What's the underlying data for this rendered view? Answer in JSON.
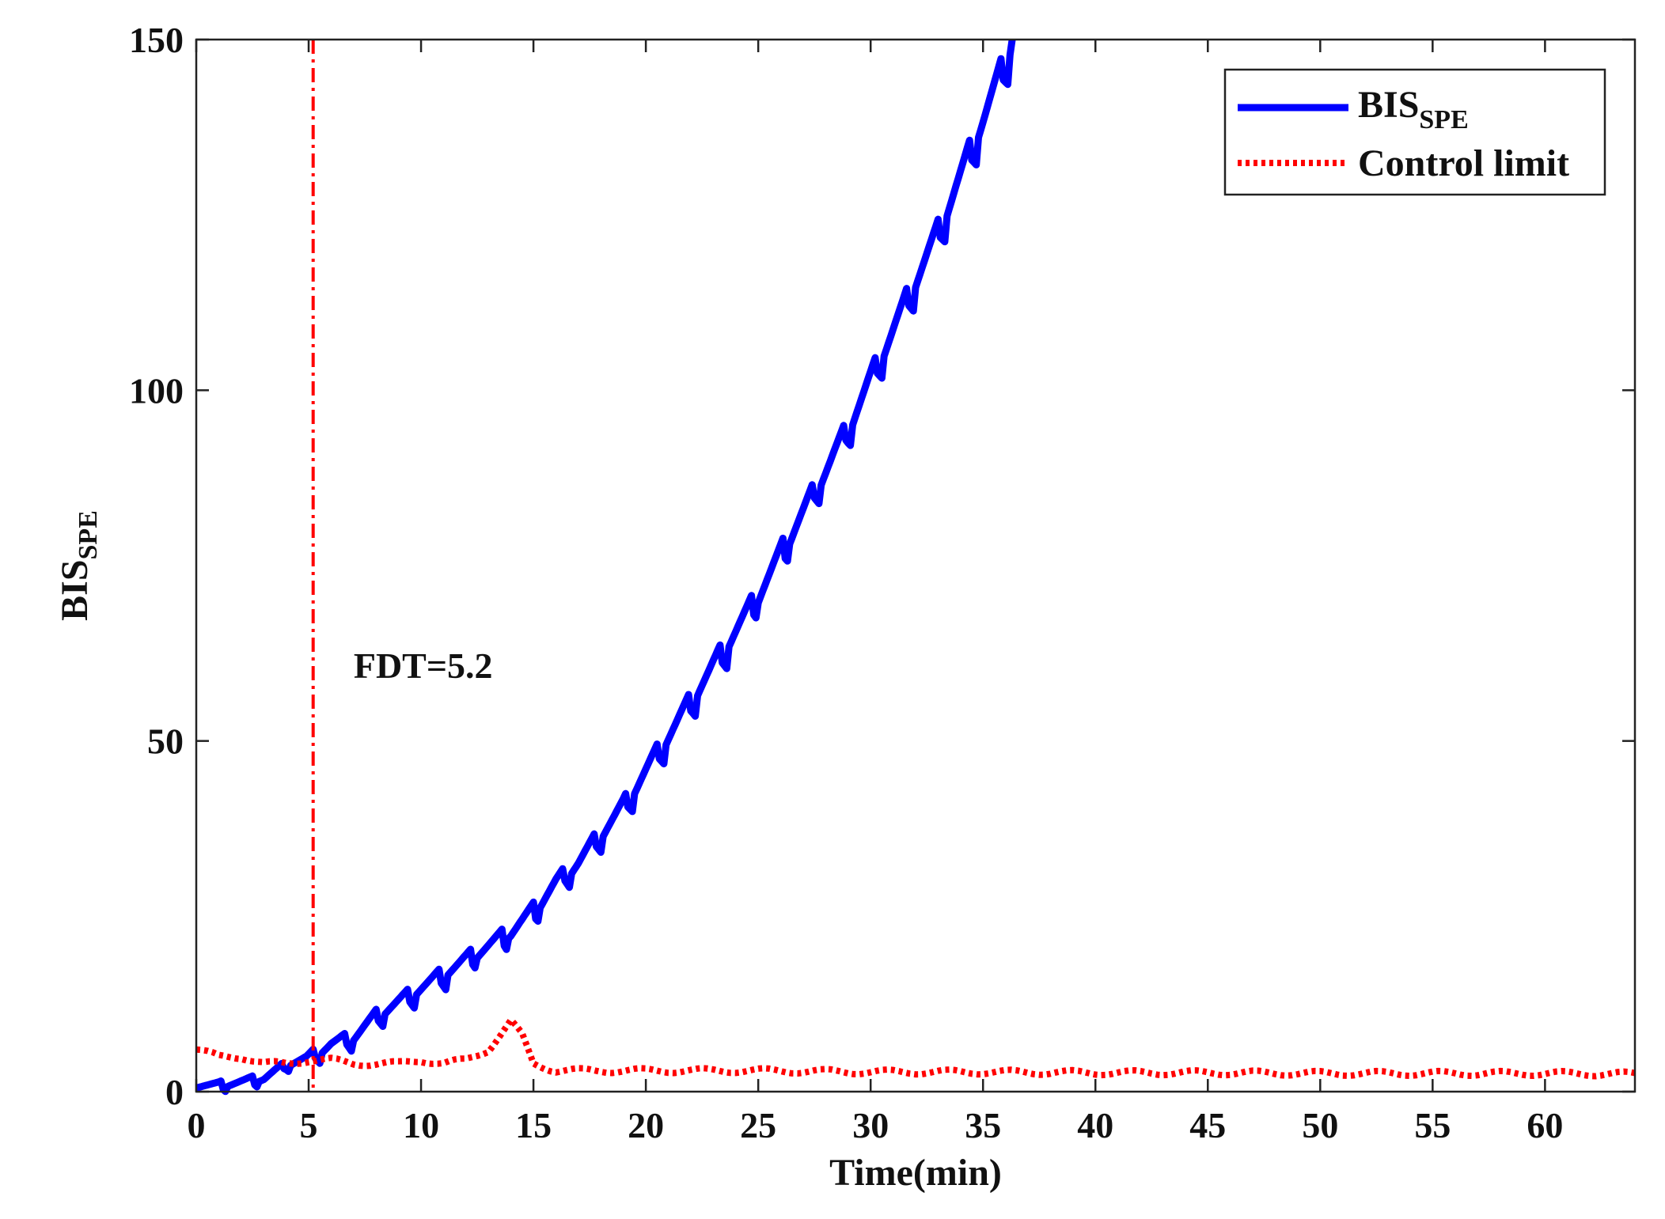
{
  "chart_data": {
    "type": "line",
    "title": "",
    "xlabel": "Time(min)",
    "ylabel_main": "BIS",
    "ylabel_sub": "SPE",
    "xlim": [
      0,
      64
    ],
    "ylim": [
      0,
      150
    ],
    "xticks": [
      0,
      5,
      10,
      15,
      20,
      25,
      30,
      35,
      40,
      45,
      50,
      55,
      60
    ],
    "yticks": [
      0,
      50,
      100,
      150
    ],
    "grid": false,
    "legend_position": "top-right",
    "legend": [
      {
        "main": "BIS",
        "sub": "SPE",
        "style": "solid",
        "color": "#0000ff"
      },
      {
        "main": "Control limit",
        "sub": "",
        "style": "dotted",
        "color": "#ff0000"
      }
    ],
    "fault_detection_time": 5.2,
    "annotation": "FDT=5.2",
    "series": [
      {
        "name": "BIS_SPE",
        "color": "#0000ff",
        "x": [
          0,
          1,
          2,
          3,
          4,
          5,
          6,
          7,
          8,
          9,
          10,
          11,
          12,
          13,
          14,
          15,
          16,
          17,
          18,
          19,
          20,
          21,
          22,
          23,
          24,
          25,
          26,
          27,
          28,
          29,
          30,
          31,
          32,
          33,
          34,
          35,
          36.3
        ],
        "y": [
          1,
          1,
          1.5,
          2,
          4,
          5,
          7,
          8,
          11,
          13,
          15,
          17,
          19,
          21,
          23,
          26,
          30,
          33,
          37,
          41,
          46,
          51,
          56,
          61,
          66,
          71,
          77,
          83,
          89,
          95,
          102,
          109,
          116,
          123,
          131,
          139,
          150
        ]
      },
      {
        "name": "Control limit",
        "color": "#ff0000",
        "x": [
          0,
          1,
          2,
          3,
          4,
          5,
          6,
          7,
          8,
          9,
          10,
          11,
          12,
          13,
          13.5,
          14,
          14.5,
          15,
          16,
          18,
          20,
          25,
          30,
          35,
          40,
          45,
          50,
          55,
          60,
          64
        ],
        "y": [
          6,
          5,
          5,
          4,
          4,
          4.5,
          4.5,
          4,
          4,
          4,
          4.5,
          4,
          4.5,
          6,
          8,
          10,
          8,
          4,
          3,
          3,
          3,
          3,
          2.8,
          2.8,
          2.7,
          2.7,
          2.6,
          2.6,
          2.6,
          2.5
        ]
      }
    ]
  }
}
